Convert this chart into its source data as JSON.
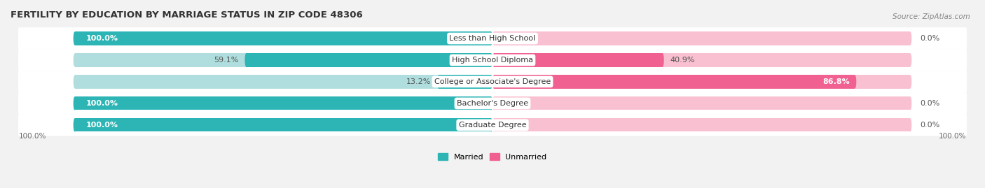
{
  "title": "FERTILITY BY EDUCATION BY MARRIAGE STATUS IN ZIP CODE 48306",
  "source": "Source: ZipAtlas.com",
  "categories": [
    "Less than High School",
    "High School Diploma",
    "College or Associate's Degree",
    "Bachelor's Degree",
    "Graduate Degree"
  ],
  "married": [
    100.0,
    59.1,
    13.2,
    100.0,
    100.0
  ],
  "unmarried": [
    0.0,
    40.9,
    86.8,
    0.0,
    0.0
  ],
  "married_color": "#2db5b5",
  "unmarried_color": "#f06090",
  "married_light_color": "#b0dede",
  "unmarried_light_color": "#f8c0d0",
  "row_bg_color": "#e8e8ea",
  "background_color": "#f2f2f2",
  "title_fontsize": 9.5,
  "source_fontsize": 7.5,
  "label_fontsize": 8.0,
  "cat_fontsize": 8.0,
  "bar_height": 0.62,
  "axis_label_left": "100.0%",
  "axis_label_right": "100.0%"
}
